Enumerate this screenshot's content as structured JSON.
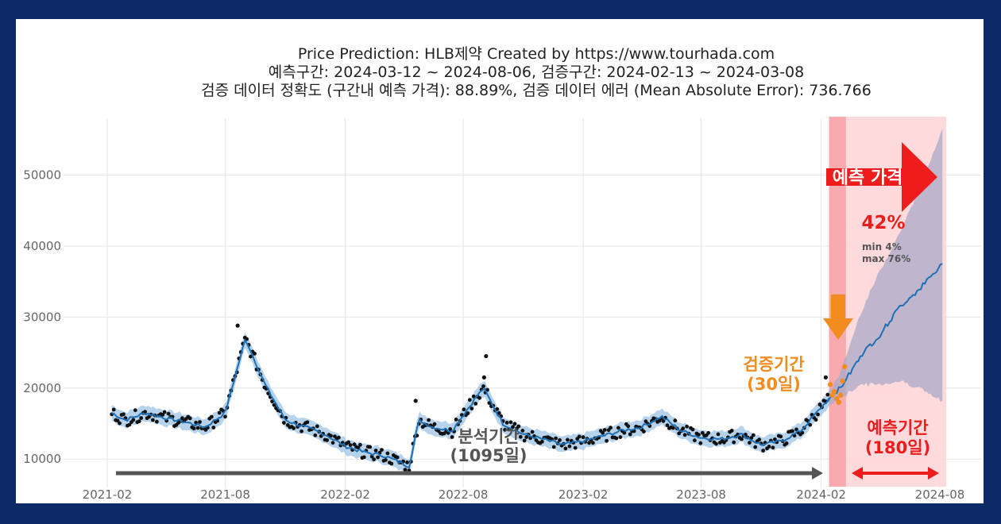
{
  "chart_data": {
    "type": "line",
    "title_lines": [
      "Price Prediction: HLB제약 Created by https://www.tourhada.com",
      "예측구간: 2024-03-12 ~ 2024-08-06, 검증구간: 2024-02-13 ~ 2024-03-08",
      "검증 데이터 정확도 (구간내 예측 가격): 88.89%, 검증 데이터 에러 (Mean Absolute Error): 736.766"
    ],
    "x_ticks": [
      "2021-02",
      "2021-08",
      "2022-02",
      "2022-08",
      "2023-02",
      "2023-08",
      "2024-02",
      "2024-08"
    ],
    "y_ticks": [
      "10000",
      "20000",
      "30000",
      "40000",
      "50000"
    ],
    "ylim": [
      6000,
      58000
    ],
    "grid": true,
    "history": {
      "x": [
        "2021-02-08",
        "2021-03-01",
        "2021-04-01",
        "2021-05-01",
        "2021-06-01",
        "2021-07-01",
        "2021-08-01",
        "2021-09-01",
        "2021-10-01",
        "2021-11-01",
        "2021-12-01",
        "2022-01-01",
        "2022-02-01",
        "2022-03-01",
        "2022-04-01",
        "2022-05-10",
        "2022-05-25",
        "2022-06-15",
        "2022-07-15",
        "2022-08-15",
        "2022-09-01",
        "2022-10-01",
        "2022-11-01",
        "2022-12-01",
        "2023-01-01",
        "2023-02-01",
        "2023-03-01",
        "2023-04-01",
        "2023-05-01",
        "2023-06-01",
        "2023-07-01",
        "2023-08-01",
        "2023-09-01",
        "2023-10-01",
        "2023-11-01",
        "2023-12-01",
        "2024-01-01",
        "2024-02-13"
      ],
      "y": [
        16500,
        15500,
        16500,
        15800,
        15200,
        14500,
        16500,
        27000,
        20500,
        15500,
        14500,
        13500,
        11800,
        11000,
        10500,
        9000,
        15500,
        14500,
        14000,
        18000,
        20000,
        15000,
        13500,
        12800,
        12000,
        12500,
        13200,
        14000,
        14500,
        16000,
        14000,
        13000,
        12800,
        13500,
        12000,
        12500,
        14000,
        18500
      ]
    },
    "forecast": {
      "x": [
        "2024-02-13",
        "2024-03-01",
        "2024-04-01",
        "2024-05-01",
        "2024-06-01",
        "2024-07-01",
        "2024-08-06"
      ],
      "y": [
        18500,
        20000,
        24500,
        27500,
        31500,
        34000,
        37500
      ],
      "upper": [
        19500,
        22000,
        30500,
        36500,
        42000,
        48000,
        57000
      ],
      "lower": [
        17500,
        18500,
        20500,
        20500,
        21000,
        20000,
        18000
      ]
    },
    "validation_points": {
      "x": [
        "2024-02-15",
        "2024-02-18",
        "2024-02-21",
        "2024-02-25",
        "2024-02-28",
        "2024-03-02",
        "2024-03-05",
        "2024-03-08"
      ],
      "y": [
        20500,
        19000,
        19500,
        18500,
        18000,
        19000,
        21000,
        23000
      ]
    },
    "annotations": {
      "forecast_label": "예측 가격",
      "rise_pct": "42%",
      "min_line": "min   4%",
      "max_line": "max 76%",
      "validation_label_1": "검증기간",
      "validation_label_2": "(30일)",
      "analysis_label_1": "분석기간",
      "analysis_label_2": "(1095일)",
      "forecast_period_1": "예측기간",
      "forecast_period_2": "(180일)"
    },
    "colors": {
      "line": "#1f6fb5",
      "band": "#9fc4e4",
      "forecast_band": "#a9a9c8",
      "points": "#111111",
      "validation": "#f28c1e",
      "forecast_region": "#ffd6d8",
      "validation_region": "#f7a4a8",
      "red": "#ee1c1c",
      "orange_arrow": "#f28c1e",
      "gray_arrow": "#555555"
    }
  }
}
